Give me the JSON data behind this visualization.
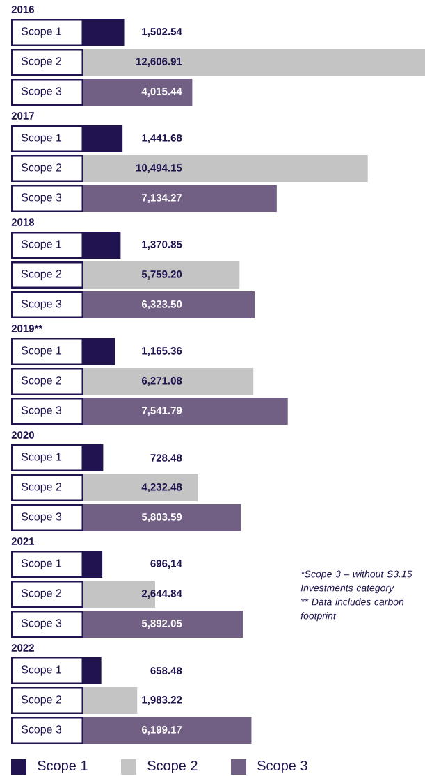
{
  "chart_data": {
    "type": "bar",
    "orientation": "horizontal",
    "categories": [
      "2016",
      "2017",
      "2018",
      "2019**",
      "2020",
      "2021",
      "2022"
    ],
    "series": [
      {
        "name": "Scope 1",
        "color": "#21134f",
        "values": [
          1502.54,
          1441.68,
          1370.85,
          1165.36,
          728.48,
          696.14,
          658.48
        ],
        "value_labels": [
          "1,502.54",
          "1,441.68",
          "1,370.85",
          "1,165.36",
          "728.48",
          "696,14",
          "658.48"
        ]
      },
      {
        "name": "Scope 2",
        "color": "#c4c4c4",
        "values": [
          12606.91,
          10494.15,
          5759.2,
          6271.08,
          4232.48,
          2644.84,
          1983.22
        ],
        "value_labels": [
          "12,606.91",
          "10,494.15",
          "5,759.20",
          "6,271.08",
          "4,232.48",
          "2,644.84",
          "1,983.22"
        ]
      },
      {
        "name": "Scope 3",
        "color": "#716084",
        "values": [
          4015.44,
          7134.27,
          6323.5,
          7541.79,
          5803.59,
          5892.05,
          6199.17
        ],
        "value_labels": [
          "4,015.44",
          "7,134.27",
          "6,323.50",
          "7,541.79",
          "5,803.59",
          "5,892.05",
          "6,199.17"
        ]
      }
    ],
    "legend": "bottom",
    "annotations": [
      "*Scope 3 – without S3.15 Investments category",
      "** Data includes carbon footprint"
    ]
  }
}
